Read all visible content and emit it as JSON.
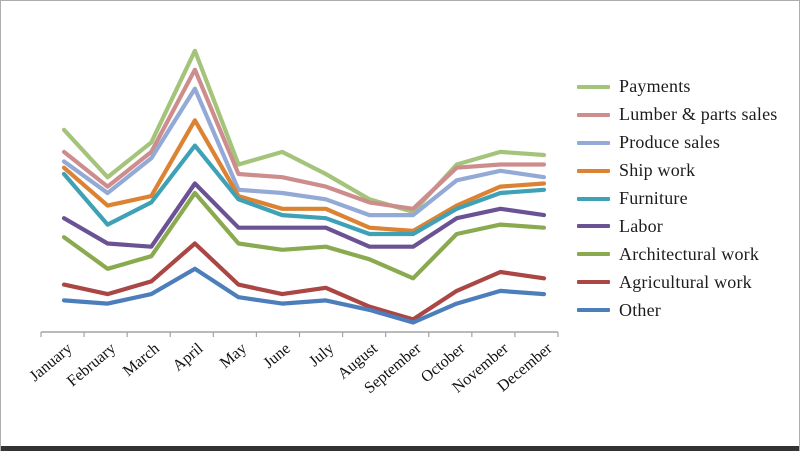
{
  "frame": {
    "background": "#ffffff",
    "border_color": "#adadad",
    "bottom_bar_color": "#333333"
  },
  "axis": {
    "color": "#a3a3a3",
    "tick_color": "#a3a3a3",
    "label_color": "#111111",
    "label_rotation_deg": -40
  },
  "legend": {
    "position": "right",
    "swatch_style": "line"
  },
  "chart_data": {
    "type": "line",
    "title": "",
    "xlabel": "",
    "ylabel": "",
    "grid": false,
    "y_axis_visible": false,
    "ylim": [
      0,
      100
    ],
    "legend_position": "right",
    "categories": [
      "January",
      "February",
      "March",
      "April",
      "May",
      "June",
      "July",
      "August",
      "September",
      "October",
      "November",
      "December"
    ],
    "series": [
      {
        "name": "Payments",
        "color": "#a4c47c",
        "values": [
          64,
          49,
          60,
          89,
          53,
          57,
          50,
          42,
          38,
          53,
          57,
          56
        ]
      },
      {
        "name": "Lumber & parts sales",
        "color": "#ce8d8d",
        "values": [
          57,
          46,
          57,
          83,
          50,
          49,
          46,
          41,
          39,
          52,
          53,
          53
        ]
      },
      {
        "name": "Produce sales",
        "color": "#93a9d6",
        "values": [
          54,
          44,
          55,
          77,
          45,
          44,
          42,
          37,
          37,
          48,
          51,
          49
        ]
      },
      {
        "name": "Ship work",
        "color": "#db8333",
        "values": [
          52,
          40,
          43,
          67,
          43,
          39,
          39,
          33,
          32,
          40,
          46,
          47
        ]
      },
      {
        "name": "Furniture",
        "color": "#3ea1b6",
        "values": [
          50,
          34,
          41,
          59,
          42,
          37,
          36,
          31,
          31,
          39,
          44,
          45
        ]
      },
      {
        "name": "Labor",
        "color": "#6b5295",
        "values": [
          36,
          28,
          27,
          47,
          33,
          33,
          33,
          27,
          27,
          36,
          39,
          37
        ]
      },
      {
        "name": "Architectural work",
        "color": "#8aaa4f",
        "values": [
          30,
          20,
          24,
          44,
          28,
          26,
          27,
          23,
          17,
          31,
          34,
          33
        ]
      },
      {
        "name": "Agricultural work",
        "color": "#aa4744",
        "values": [
          15,
          12,
          16,
          28,
          15,
          12,
          14,
          8,
          4,
          13,
          19,
          17
        ]
      },
      {
        "name": "Other",
        "color": "#4d7ebc",
        "values": [
          10,
          9,
          12,
          20,
          11,
          9,
          10,
          7,
          3,
          9,
          13,
          12
        ]
      }
    ]
  }
}
